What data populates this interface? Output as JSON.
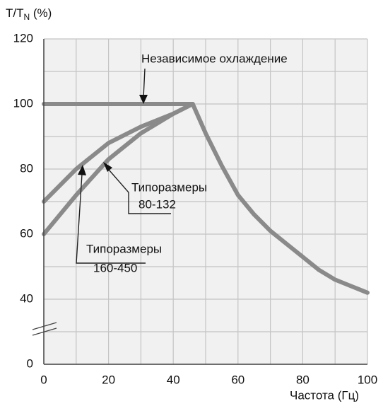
{
  "chart_data": {
    "type": "line",
    "y_label": [
      "T/T",
      "N",
      " (%)"
    ],
    "x_label": "Частота (Гц)",
    "xlim": [
      0,
      100
    ],
    "xticks": [
      0,
      20,
      40,
      60,
      80,
      100
    ],
    "xminor": [
      10,
      30,
      50,
      70,
      90
    ],
    "ylim": [
      0,
      120
    ],
    "yticks": [
      0,
      40,
      60,
      80,
      100,
      120
    ],
    "yminor": [
      50,
      70,
      90,
      110
    ],
    "y_break": [
      0,
      40
    ],
    "grid": true,
    "series": [
      {
        "color": "#8a8a8a",
        "x": [
          0,
          46,
          50,
          55,
          60,
          65,
          70,
          75,
          80,
          85,
          90,
          95,
          100
        ],
        "values": [
          100,
          100,
          91,
          81,
          72,
          66,
          61,
          57,
          53,
          49,
          46,
          44,
          42
        ]
      },
      {
        "color": "#8a8a8a",
        "x": [
          0,
          10,
          20,
          30,
          40,
          46
        ],
        "values": [
          60,
          72,
          83,
          91,
          97,
          100
        ]
      },
      {
        "color": "#8a8a8a",
        "x": [
          0,
          10,
          20,
          30,
          40,
          46
        ],
        "values": [
          70,
          80,
          88,
          93,
          97,
          100
        ]
      }
    ],
    "annotations": [
      {
        "lines": [
          "Независимое охлаждение"
        ]
      },
      {
        "lines": [
          "Типоразмеры",
          "80-132"
        ]
      },
      {
        "lines": [
          "Типоразмеры",
          "160-450"
        ]
      }
    ]
  }
}
